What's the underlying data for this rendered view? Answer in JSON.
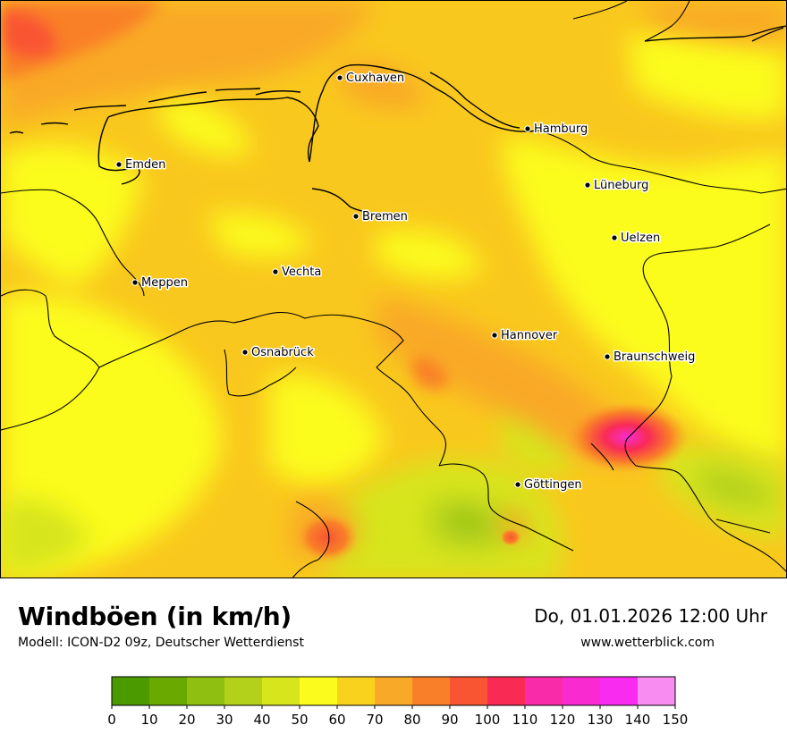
{
  "map": {
    "cities": [
      {
        "name": "Cuxhaven"
      },
      {
        "name": "Hamburg"
      },
      {
        "name": "Emden"
      },
      {
        "name": "Lüneburg"
      },
      {
        "name": "Bremen"
      },
      {
        "name": "Uelzen"
      },
      {
        "name": "Vechta"
      },
      {
        "name": "Meppen"
      },
      {
        "name": "Hannover"
      },
      {
        "name": "Osnabrück"
      },
      {
        "name": "Braunschweig"
      },
      {
        "name": "Göttingen"
      }
    ]
  },
  "header": {
    "title": "Windböen (in km/h)",
    "subtitle": "Modell: ICON-D2 09z, Deutscher Wetterdienst",
    "datetime": "Do, 01.01.2026 12:00 Uhr",
    "website": "www.wetterblick.com"
  },
  "legend": {
    "ticks": [
      "0",
      "10",
      "20",
      "30",
      "40",
      "50",
      "60",
      "70",
      "80",
      "90",
      "100",
      "110",
      "120",
      "130",
      "140",
      "150"
    ],
    "colors": [
      "#4a9a00",
      "#6aaa00",
      "#8fbf10",
      "#b3d11a",
      "#d7e51c",
      "#fbfb1e",
      "#f9d21e",
      "#f9a928",
      "#f98028",
      "#f95533",
      "#f92b55",
      "#f92ba8",
      "#f92bd0",
      "#f92bf0",
      "#f98cf0"
    ]
  }
}
